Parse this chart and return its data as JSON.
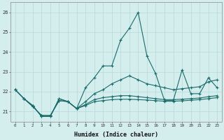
{
  "xlabel": "Humidex (Indice chaleur)",
  "x": [
    0,
    1,
    2,
    3,
    4,
    5,
    6,
    7,
    8,
    9,
    10,
    11,
    12,
    13,
    14,
    15,
    16,
    17,
    18,
    19,
    20,
    21,
    22,
    23
  ],
  "line_spike": [
    22.1,
    21.65,
    21.3,
    20.75,
    20.75,
    21.65,
    21.5,
    21.15,
    22.2,
    22.7,
    23.3,
    23.3,
    24.6,
    25.2,
    26.0,
    23.8,
    22.9,
    21.55,
    21.55,
    23.1,
    21.9,
    21.9,
    22.7,
    22.2
  ],
  "line_rise": [
    22.1,
    21.65,
    21.3,
    20.75,
    20.75,
    21.65,
    21.5,
    21.15,
    21.5,
    21.9,
    22.1,
    22.4,
    22.6,
    22.8,
    22.6,
    22.4,
    22.3,
    22.2,
    22.1,
    22.15,
    22.2,
    22.25,
    22.5,
    22.6
  ],
  "line_flat1": [
    22.1,
    21.65,
    21.25,
    20.8,
    20.8,
    21.55,
    21.5,
    21.15,
    21.35,
    21.6,
    21.7,
    21.75,
    21.8,
    21.8,
    21.75,
    21.7,
    21.65,
    21.6,
    21.6,
    21.62,
    21.65,
    21.68,
    21.75,
    21.8
  ],
  "line_flat2": [
    22.1,
    21.65,
    21.25,
    20.8,
    20.8,
    21.55,
    21.5,
    21.15,
    21.3,
    21.5,
    21.55,
    21.6,
    21.62,
    21.62,
    21.6,
    21.58,
    21.55,
    21.52,
    21.52,
    21.54,
    21.57,
    21.6,
    21.65,
    21.7
  ],
  "ylim": [
    20.5,
    26.5
  ],
  "xlim": [
    -0.5,
    23.5
  ],
  "bg_color": "#d4eeee",
  "line_color": "#1a6b6b",
  "grid_color": "#b8d8d8"
}
